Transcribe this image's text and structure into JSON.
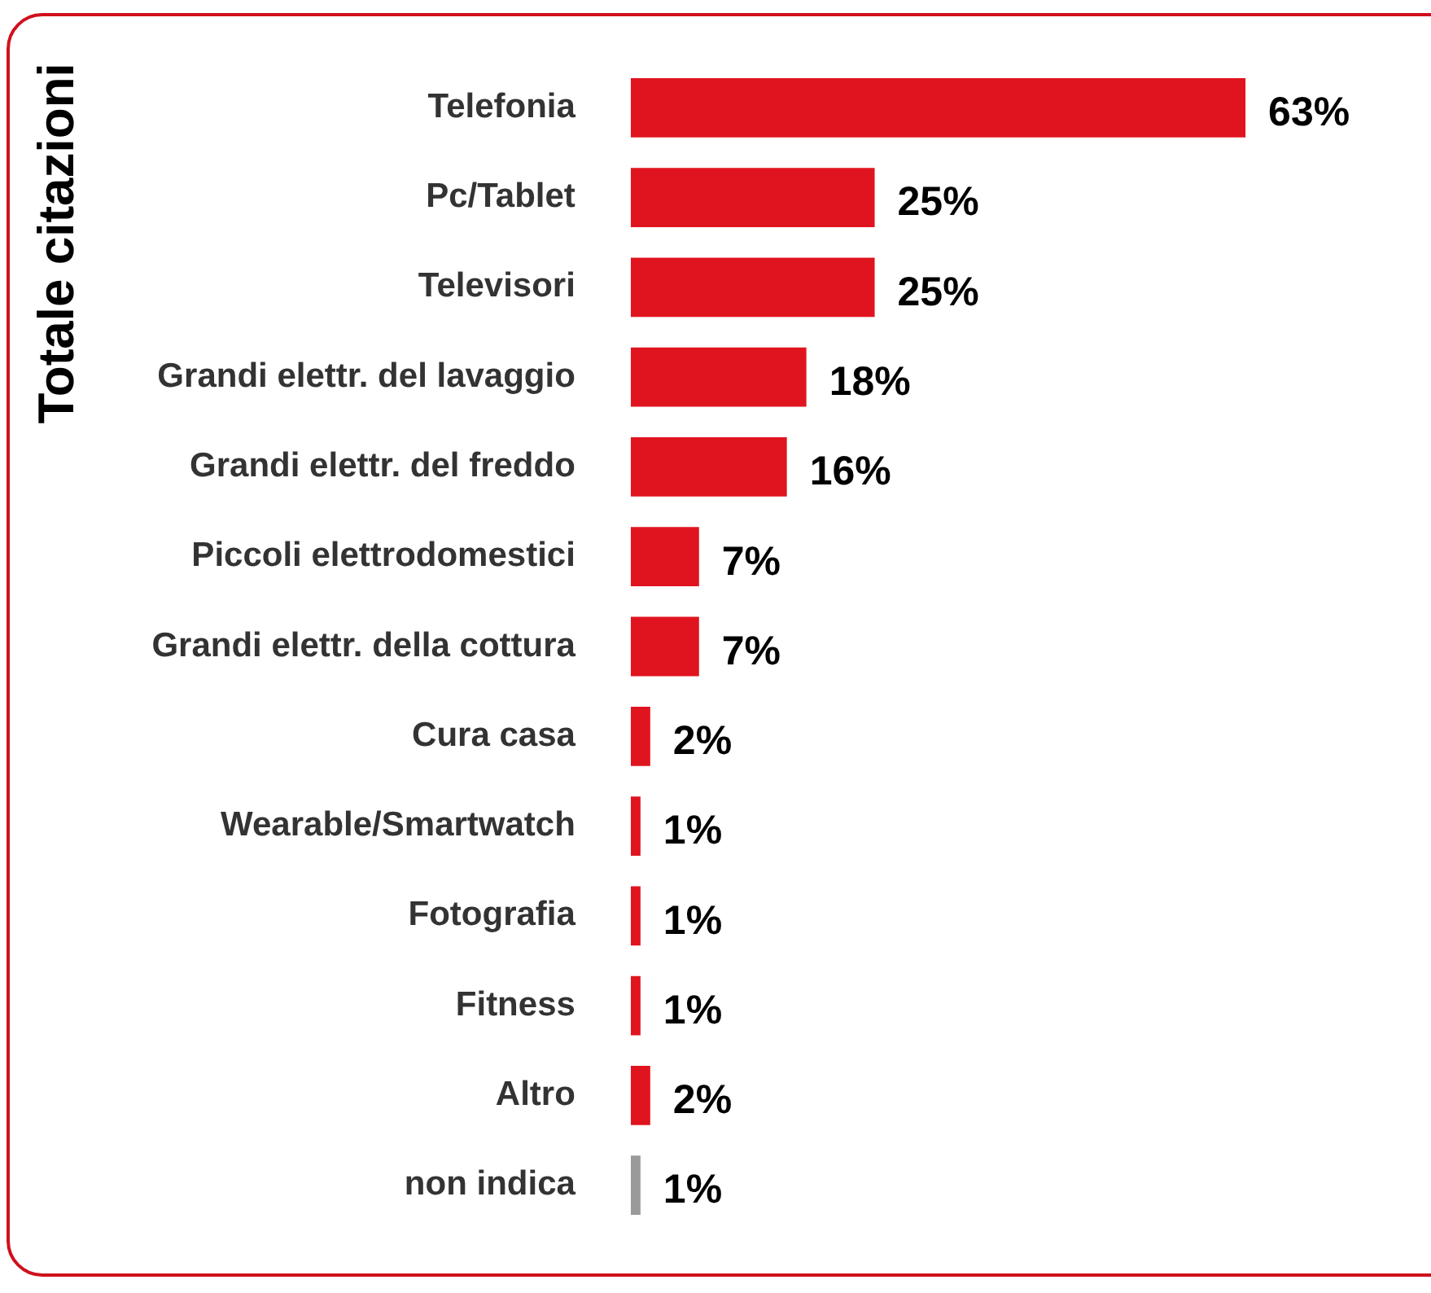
{
  "chart_data": {
    "type": "bar",
    "orientation": "horizontal",
    "ylabel": "Totale citazioni",
    "categories": [
      "Telefonia",
      "Pc/Tablet",
      "Televisori",
      "Grandi elettr. del lavaggio",
      "Grandi elettr. del freddo",
      "Piccoli elettrodomestici",
      "Grandi elettr. della cottura",
      "Cura casa",
      "Wearable/Smartwatch",
      "Fotografia",
      "Fitness",
      "Altro",
      "non indica"
    ],
    "values": [
      63,
      25,
      25,
      18,
      16,
      7,
      7,
      2,
      1,
      1,
      1,
      2,
      1
    ],
    "colors": [
      "#e0141f",
      "#e0141f",
      "#e0141f",
      "#e0141f",
      "#e0141f",
      "#e0141f",
      "#e0141f",
      "#e0141f",
      "#e0141f",
      "#e0141f",
      "#e0141f",
      "#e0141f",
      "#9a9a9a"
    ],
    "value_labels": [
      "63%",
      "25%",
      "25%",
      "18%",
      "16%",
      "7%",
      "7%",
      "2%",
      "1%",
      "1%",
      "1%",
      "2%",
      "1%"
    ],
    "legend": false
  }
}
